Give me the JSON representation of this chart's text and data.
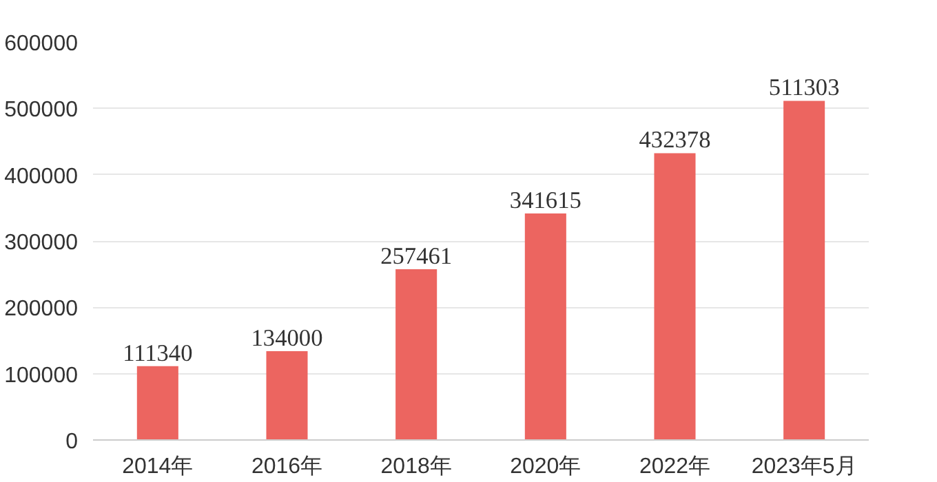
{
  "chart_data": {
    "type": "bar",
    "categories": [
      "2014年",
      "2016年",
      "2018年",
      "2020年",
      "2022年",
      "2023年5月"
    ],
    "values": [
      111340,
      134000,
      257461,
      341615,
      432378,
      511303
    ],
    "color": "#ec6560",
    "data_labels": true,
    "ylim": [
      0,
      600000
    ],
    "yticks": [
      0,
      100000,
      200000,
      300000,
      400000,
      500000,
      600000
    ],
    "grid": "y"
  }
}
